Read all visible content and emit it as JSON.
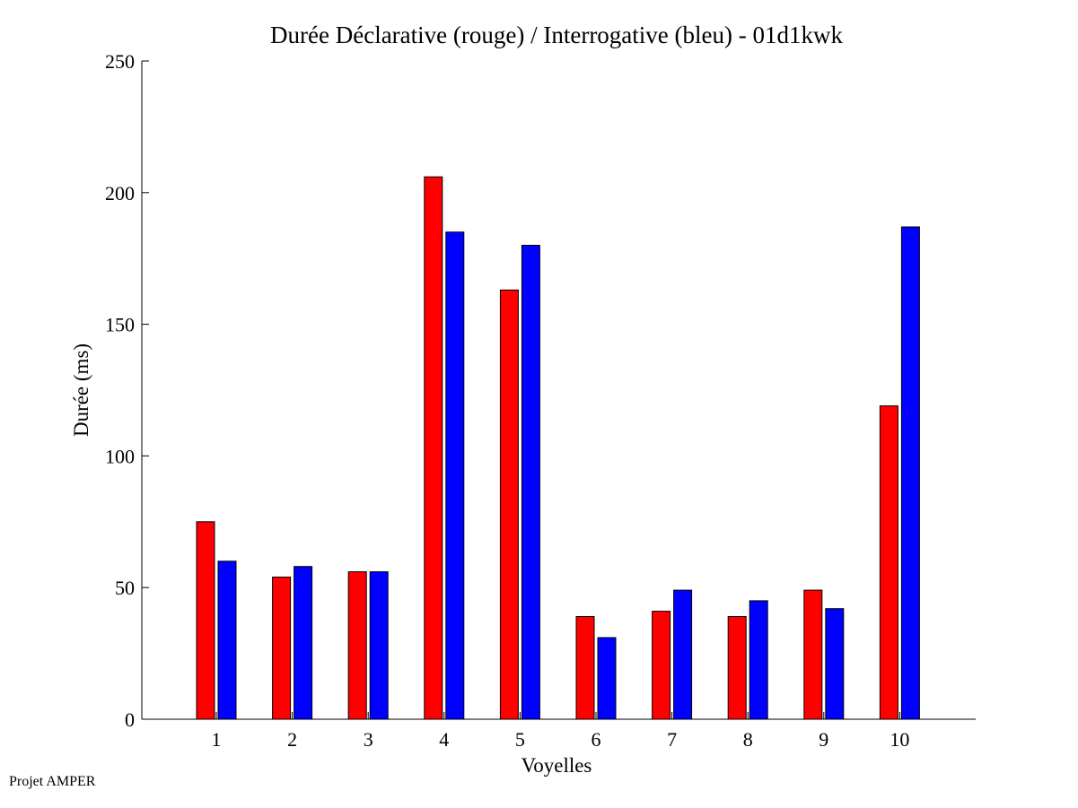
{
  "chart_data": {
    "type": "bar",
    "title": "Durée Déclarative (rouge) / Interrogative (bleu) - 01d1kwk",
    "xlabel": "Voyelles",
    "ylabel": "Durée (ms)",
    "categories": [
      "1",
      "2",
      "3",
      "4",
      "5",
      "6",
      "7",
      "8",
      "9",
      "10"
    ],
    "ylim": [
      0,
      250
    ],
    "yticks": [
      0,
      50,
      100,
      150,
      200,
      250
    ],
    "grid": false,
    "series": [
      {
        "color": "#ff0000",
        "values": [
          75,
          54,
          56,
          206,
          163,
          39,
          41,
          39,
          49,
          119
        ]
      },
      {
        "color": "#0000ff",
        "values": [
          60,
          58,
          56,
          185,
          180,
          31,
          49,
          45,
          42,
          187
        ]
      }
    ]
  },
  "footer": {
    "text": "Projet AMPER"
  }
}
